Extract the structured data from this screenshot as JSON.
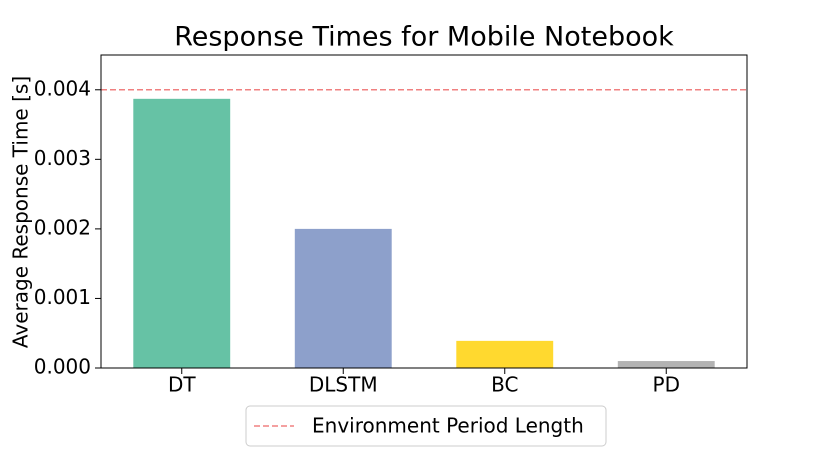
{
  "chart_data": {
    "type": "bar",
    "title": "Response Times for Mobile Notebook",
    "y_label": "Average Response Time [s]",
    "categories": [
      "DT",
      "DLSTM",
      "BC",
      "PD"
    ],
    "values": [
      0.00387,
      0.002,
      0.00039,
      0.0001
    ],
    "colors": [
      "#66c2a5",
      "#8da0cb",
      "#ffd92f",
      "#b3b3b3"
    ],
    "ylim": [
      0,
      0.0045
    ],
    "yticks": [
      {
        "value": 0,
        "label": "0.000"
      },
      {
        "value": 0.001,
        "label": "0.001"
      },
      {
        "value": 0.002,
        "label": "0.002"
      },
      {
        "value": 0.003,
        "label": "0.003"
      },
      {
        "value": 0.004,
        "label": "0.004"
      }
    ],
    "reference_line": {
      "value": 0.004,
      "label": "Environment Period Length",
      "color": "#f08080"
    },
    "legend": "bottom"
  }
}
